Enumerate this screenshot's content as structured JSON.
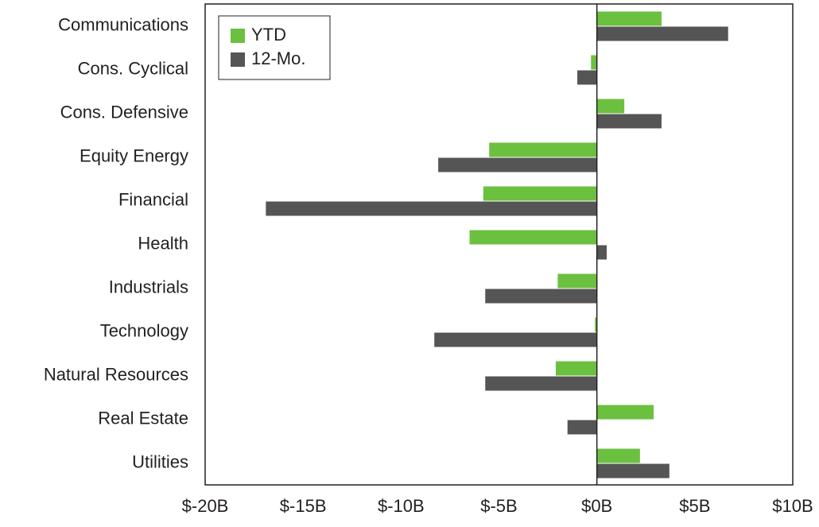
{
  "chart_data": {
    "type": "barh",
    "categories": [
      "Communications",
      "Cons. Cyclical",
      "Cons. Defensive",
      "Equity Energy",
      "Financial",
      "Health",
      "Industrials",
      "Technology",
      "Natural Resources",
      "Real Estate",
      "Utilities"
    ],
    "series": [
      {
        "name": "YTD",
        "color": "#6cc040",
        "values": [
          3.3,
          -0.3,
          1.4,
          -5.5,
          -5.8,
          -6.5,
          -2.0,
          -0.1,
          -2.1,
          2.9,
          2.2
        ]
      },
      {
        "name": "12-Mo.",
        "color": "#555555",
        "values": [
          6.7,
          -1.0,
          3.3,
          -8.1,
          -16.9,
          0.5,
          -5.7,
          -8.3,
          -5.7,
          -1.5,
          3.7
        ]
      }
    ],
    "xlim": [
      -20,
      10
    ],
    "xticks": [
      {
        "value": -20,
        "label": "$-20B"
      },
      {
        "value": -15,
        "label": "$-15B"
      },
      {
        "value": -10,
        "label": "$-10B"
      },
      {
        "value": -5,
        "label": "$-5B"
      },
      {
        "value": 0,
        "label": "$0B"
      },
      {
        "value": 5,
        "label": "$5B"
      },
      {
        "value": 10,
        "label": "$10B"
      }
    ],
    "legend": "upper left",
    "grid": false
  }
}
